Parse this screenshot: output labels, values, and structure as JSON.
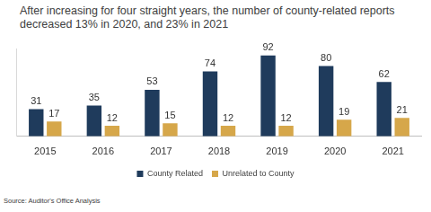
{
  "chart_data": {
    "type": "bar",
    "title": "After increasing for four straight years, the number of county-related reports decreased 13% in 2020, and 23% in 2021",
    "source": "Source: Auditor's Office Analysis",
    "categories": [
      "2015",
      "2016",
      "2017",
      "2018",
      "2019",
      "2020",
      "2021"
    ],
    "series": [
      {
        "name": "County Related",
        "color": "#1f3b5c",
        "values": [
          31,
          35,
          53,
          74,
          92,
          80,
          62
        ]
      },
      {
        "name": "Unrelated to County",
        "color": "#d6a74a",
        "values": [
          17,
          12,
          15,
          12,
          12,
          19,
          21
        ]
      }
    ],
    "ylim": [
      0,
      100
    ],
    "grid": false,
    "legend": "bottom",
    "data_labels": true,
    "tick_labels": "x"
  }
}
